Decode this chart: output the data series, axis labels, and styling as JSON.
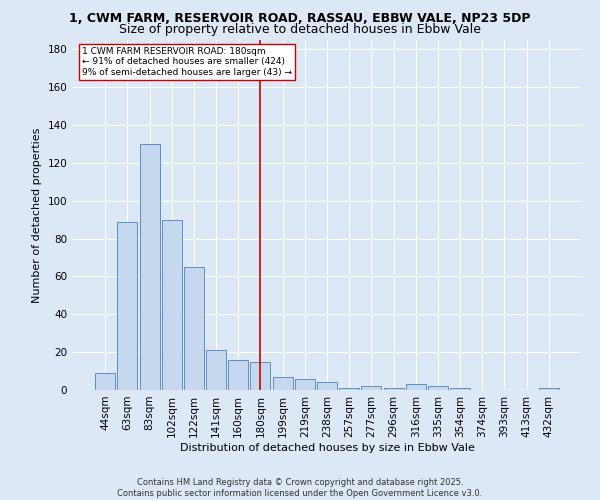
{
  "title": "1, CWM FARM, RESERVOIR ROAD, RASSAU, EBBW VALE, NP23 5DP",
  "subtitle": "Size of property relative to detached houses in Ebbw Vale",
  "xlabel": "Distribution of detached houses by size in Ebbw Vale",
  "ylabel": "Number of detached properties",
  "categories": [
    "44sqm",
    "63sqm",
    "83sqm",
    "102sqm",
    "122sqm",
    "141sqm",
    "160sqm",
    "180sqm",
    "199sqm",
    "219sqm",
    "238sqm",
    "257sqm",
    "277sqm",
    "296sqm",
    "316sqm",
    "335sqm",
    "354sqm",
    "374sqm",
    "393sqm",
    "413sqm",
    "432sqm"
  ],
  "values": [
    9,
    89,
    130,
    90,
    65,
    21,
    16,
    15,
    7,
    6,
    4,
    1,
    2,
    1,
    3,
    2,
    1,
    0,
    0,
    0,
    1
  ],
  "bar_color": "#c5d8ed",
  "bar_edge_color": "#5b8fc9",
  "vline_x_idx": 7,
  "vline_color": "#cc0000",
  "annotation_box_color": "#cc0000",
  "annotation_text_line1": "1 CWM FARM RESERVOIR ROAD: 180sqm",
  "annotation_text_line2": "← 91% of detached houses are smaller (424)",
  "annotation_text_line3": "9% of semi-detached houses are larger (43) →",
  "ylim": [
    0,
    185
  ],
  "yticks": [
    0,
    20,
    40,
    60,
    80,
    100,
    120,
    140,
    160,
    180
  ],
  "footer_line1": "Contains HM Land Registry data © Crown copyright and database right 2025.",
  "footer_line2": "Contains public sector information licensed under the Open Government Licence v3.0.",
  "background_color": "#dce8f5",
  "plot_background": "#dce8f5",
  "grid_color": "#ffffff",
  "title_fontsize": 9,
  "subtitle_fontsize": 9,
  "axis_label_fontsize": 8,
  "tick_fontsize": 7.5
}
